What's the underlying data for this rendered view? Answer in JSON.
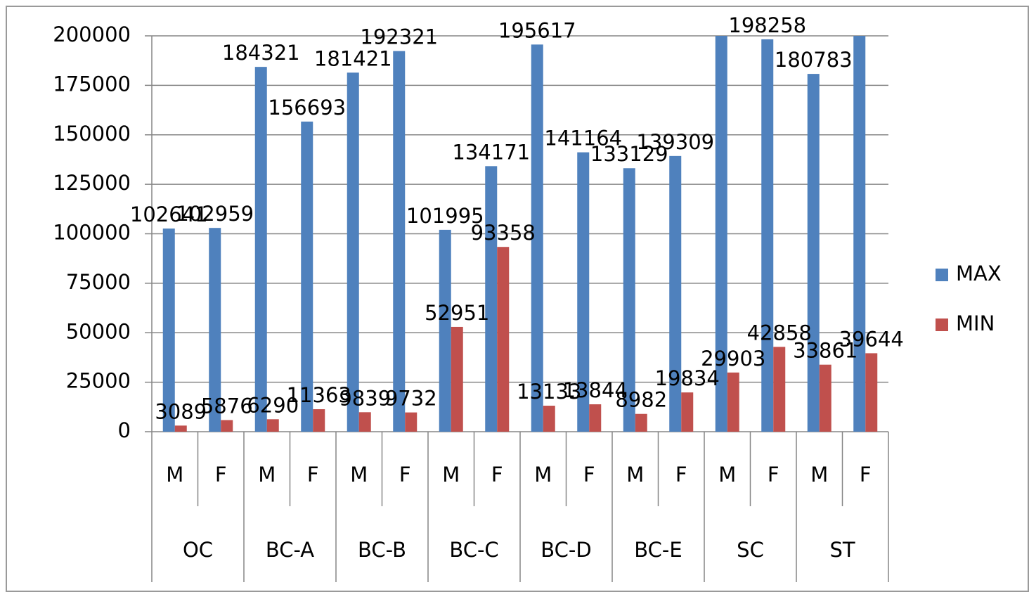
{
  "chart_data": {
    "type": "bar",
    "groups": [
      "OC",
      "BC-A",
      "BC-B",
      "BC-C",
      "BC-D",
      "BC-E",
      "SC",
      "ST"
    ],
    "categories": [
      "M",
      "F",
      "M",
      "F",
      "M",
      "F",
      "M",
      "F",
      "M",
      "F",
      "M",
      "F",
      "M",
      "F",
      "M",
      "F"
    ],
    "series": [
      {
        "name": "MAX",
        "color": "#4f81bd",
        "values": [
          102641,
          102959,
          184321,
          156693,
          181421,
          192321,
          101995,
          134171,
          195617,
          141164,
          133129,
          139309,
          200000,
          198258,
          180783,
          200000
        ]
      },
      {
        "name": "MIN",
        "color": "#c0504d",
        "values": [
          3089,
          5876,
          6290,
          11363,
          9839,
          9732,
          52951,
          93358,
          13133,
          13844,
          8982,
          19834,
          29903,
          42858,
          33861,
          39644
        ]
      }
    ],
    "ylim": [
      0,
      200000
    ],
    "yticks": [
      0,
      25000,
      50000,
      75000,
      100000,
      125000,
      150000,
      175000,
      200000
    ],
    "grid": true,
    "legend": "right"
  }
}
